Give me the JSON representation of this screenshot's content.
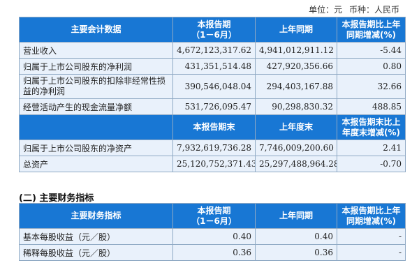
{
  "unit_line": {
    "unit": "单位：元",
    "currency": "币种：人民币"
  },
  "table1": {
    "header1": [
      "主要会计数据",
      "本报告期\n（1－6月）",
      "上年同期",
      "本报告期比上年同期增减(%)"
    ],
    "rows1": [
      {
        "label": "营业收入",
        "current": "4,672,123,317.62",
        "prior": "4,941,012,911.12",
        "change": "-5.44"
      },
      {
        "label": "归属于上市公司股东的净利润",
        "current": "431,351,514.48",
        "prior": "427,920,356.66",
        "change": "0.80"
      },
      {
        "label": "归属于上市公司股东的扣除非经常性损益的净利润",
        "current": "390,546,048.04",
        "prior": "294,403,167.88",
        "change": "32.66"
      },
      {
        "label": "经营活动产生的现金流量净额",
        "current": "531,726,095.47",
        "prior": "90,298,830.32",
        "change": "488.85"
      }
    ],
    "header2": [
      "",
      "本报告期末",
      "上年度末",
      "本报告期末比上年度末增减(%)"
    ],
    "rows2": [
      {
        "label": "归属于上市公司股东的净资产",
        "current": "7,932,619,736.28",
        "prior": "7,746,009,200.60",
        "change": "2.41"
      },
      {
        "label": "总资产",
        "current": "25,120,752,371.43",
        "prior": "25,297,488,964.28",
        "change": "-0.70"
      }
    ]
  },
  "section2_title": "(二) 主要财务指标",
  "table2": {
    "header": [
      "主要财务指标",
      "本报告期\n（1－6月）",
      "上年同期",
      "本报告期比上年同期增减(%)"
    ],
    "rows": [
      {
        "label": "基本每股收益（元／股）",
        "current": "0.40",
        "prior": "0.40",
        "change": "-"
      },
      {
        "label": "稀释每股收益（元／股）",
        "current": "0.36",
        "prior": "0.36",
        "change": "-"
      }
    ]
  },
  "colors": {
    "header_bg": "#1877d4",
    "row_bg": "#e9f1fb",
    "border": "#8fa9c4"
  }
}
